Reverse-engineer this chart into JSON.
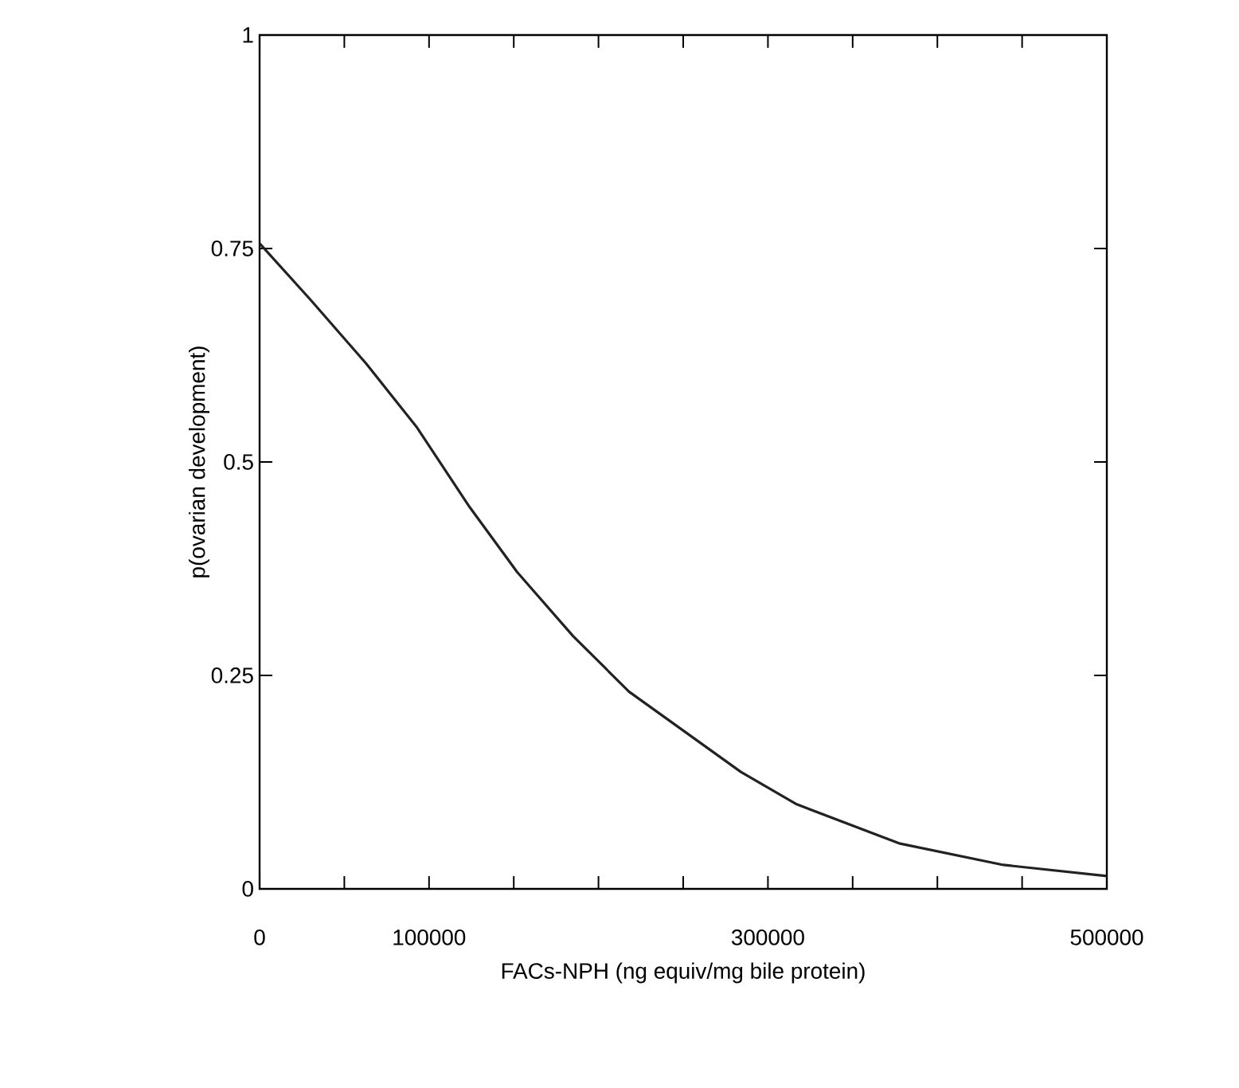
{
  "chart_data": {
    "type": "line",
    "xlabel": "FACs-NPH (ng equiv/mg bile protein)",
    "ylabel": "p(ovarian development)",
    "x": [
      0,
      30000,
      63000,
      93000,
      124000,
      152000,
      185000,
      218000,
      251000,
      284000,
      317000,
      378000,
      439000,
      500000
    ],
    "series": [
      {
        "color": "#222222",
        "values": [
          0.756,
          0.69,
          0.615,
          0.54,
          0.447,
          0.371,
          0.296,
          0.231,
          0.184,
          0.137,
          0.099,
          0.053,
          0.028,
          0.015
        ]
      }
    ],
    "xlim": [
      0,
      500000
    ],
    "ylim": [
      0,
      1
    ],
    "xticks": [
      0,
      {
        "value": 50000,
        "label": null
      },
      100000,
      {
        "value": 150000,
        "label": null
      },
      {
        "value": 200000,
        "label": null
      },
      {
        "value": 250000,
        "label": null
      },
      300000,
      {
        "value": 350000,
        "label": null
      },
      {
        "value": 400000,
        "label": null
      },
      {
        "value": 450000,
        "label": null
      },
      500000
    ],
    "yticks": [
      0,
      0.25,
      0.5,
      0.75,
      1
    ],
    "marker": "none",
    "line_style": "solid"
  }
}
